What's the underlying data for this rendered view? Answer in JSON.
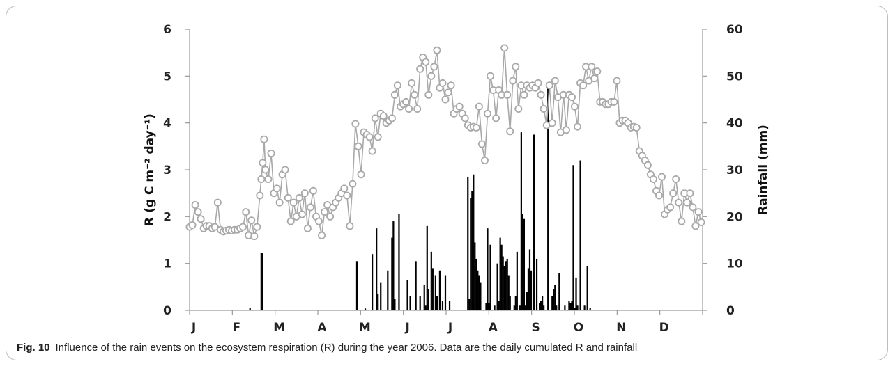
{
  "caption": {
    "label": "Fig. 10",
    "text": "Influence of the rain events on the ecosystem respiration (R) during the year 2006. Data are the daily cumulated R and rainfall"
  },
  "colors": {
    "respiration": "#a8a8a8",
    "rainfall": "#000000",
    "axis": "#9a9a9a"
  },
  "chart_data": {
    "type": "line+bar",
    "year": 2006,
    "title": "",
    "left_axis": {
      "label": "R (g C m⁻² day⁻¹)",
      "range": [
        0,
        6
      ],
      "ticks": [
        "0",
        "1",
        "2",
        "3",
        "4",
        "5",
        "6"
      ]
    },
    "right_axis": {
      "label": "Rainfall (mm)",
      "range": [
        0,
        60
      ],
      "ticks": [
        "0",
        "10",
        "20",
        "30",
        "40",
        "50",
        "60"
      ]
    },
    "x_axis": {
      "month_labels": [
        "J",
        "F",
        "M",
        "A",
        "M",
        "J",
        "J",
        "A",
        "S",
        "O",
        "N",
        "D"
      ],
      "range_days": [
        1,
        365
      ]
    },
    "grid": false,
    "legend": "none",
    "series": [
      {
        "name": "R",
        "kind": "line with circle markers",
        "axis": "left",
        "points": [
          [
            1,
            1.78
          ],
          [
            3,
            1.82
          ],
          [
            5,
            2.25
          ],
          [
            7,
            2.1
          ],
          [
            9,
            1.95
          ],
          [
            11,
            1.75
          ],
          [
            13,
            1.8
          ],
          [
            15,
            1.8
          ],
          [
            17,
            1.75
          ],
          [
            19,
            1.78
          ],
          [
            21,
            2.3
          ],
          [
            23,
            1.72
          ],
          [
            25,
            1.68
          ],
          [
            27,
            1.7
          ],
          [
            29,
            1.72
          ],
          [
            31,
            1.7
          ],
          [
            33,
            1.72
          ],
          [
            35,
            1.72
          ],
          [
            37,
            1.75
          ],
          [
            39,
            1.78
          ],
          [
            41,
            2.1
          ],
          [
            43,
            1.6
          ],
          [
            45,
            1.92
          ],
          [
            47,
            1.58
          ],
          [
            49,
            1.78
          ],
          [
            51,
            2.45
          ],
          [
            52,
            2.8
          ],
          [
            53,
            3.15
          ],
          [
            54,
            3.65
          ],
          [
            55,
            3.0
          ],
          [
            57,
            2.8
          ],
          [
            59,
            3.35
          ],
          [
            61,
            2.5
          ],
          [
            63,
            2.6
          ],
          [
            65,
            2.3
          ],
          [
            67,
            2.9
          ],
          [
            69,
            3.0
          ],
          [
            71,
            2.4
          ],
          [
            73,
            1.9
          ],
          [
            75,
            2.3
          ],
          [
            77,
            2.0
          ],
          [
            79,
            2.4
          ],
          [
            81,
            2.05
          ],
          [
            83,
            2.5
          ],
          [
            85,
            1.75
          ],
          [
            87,
            2.2
          ],
          [
            89,
            2.55
          ],
          [
            91,
            2.0
          ],
          [
            93,
            1.9
          ],
          [
            95,
            1.6
          ],
          [
            97,
            2.1
          ],
          [
            99,
            2.25
          ],
          [
            101,
            2.0
          ],
          [
            103,
            2.2
          ],
          [
            105,
            2.3
          ],
          [
            107,
            2.4
          ],
          [
            109,
            2.5
          ],
          [
            111,
            2.6
          ],
          [
            113,
            2.45
          ],
          [
            115,
            1.8
          ],
          [
            117,
            2.7
          ],
          [
            119,
            3.98
          ],
          [
            121,
            3.5
          ],
          [
            123,
            2.9
          ],
          [
            125,
            3.8
          ],
          [
            127,
            3.75
          ],
          [
            129,
            3.7
          ],
          [
            131,
            3.4
          ],
          [
            133,
            4.1
          ],
          [
            135,
            3.7
          ],
          [
            137,
            4.2
          ],
          [
            139,
            4.15
          ],
          [
            141,
            4.0
          ],
          [
            143,
            4.05
          ],
          [
            145,
            4.1
          ],
          [
            147,
            4.6
          ],
          [
            149,
            4.8
          ],
          [
            151,
            4.35
          ],
          [
            153,
            4.4
          ],
          [
            155,
            4.45
          ],
          [
            157,
            4.3
          ],
          [
            159,
            4.85
          ],
          [
            161,
            4.6
          ],
          [
            163,
            4.3
          ],
          [
            165,
            5.15
          ],
          [
            167,
            5.4
          ],
          [
            169,
            5.3
          ],
          [
            171,
            4.6
          ],
          [
            173,
            5.0
          ],
          [
            175,
            5.2
          ],
          [
            177,
            5.55
          ],
          [
            179,
            4.75
          ],
          [
            181,
            4.85
          ],
          [
            183,
            4.5
          ],
          [
            185,
            4.65
          ],
          [
            187,
            4.8
          ],
          [
            189,
            4.2
          ],
          [
            191,
            4.3
          ],
          [
            193,
            4.35
          ],
          [
            195,
            4.2
          ],
          [
            197,
            4.1
          ],
          [
            199,
            3.95
          ],
          [
            201,
            3.9
          ],
          [
            203,
            3.92
          ],
          [
            205,
            3.9
          ],
          [
            207,
            4.35
          ],
          [
            209,
            3.55
          ],
          [
            211,
            3.2
          ],
          [
            213,
            4.2
          ],
          [
            215,
            5.0
          ],
          [
            217,
            4.7
          ],
          [
            219,
            4.1
          ],
          [
            221,
            4.7
          ],
          [
            223,
            4.6
          ],
          [
            225,
            5.6
          ],
          [
            227,
            4.6
          ],
          [
            229,
            3.82
          ],
          [
            231,
            4.9
          ],
          [
            233,
            5.2
          ],
          [
            235,
            4.3
          ],
          [
            237,
            4.8
          ],
          [
            239,
            4.6
          ],
          [
            241,
            4.8
          ],
          [
            243,
            4.75
          ],
          [
            245,
            4.8
          ],
          [
            247,
            4.75
          ],
          [
            249,
            4.85
          ],
          [
            251,
            4.6
          ],
          [
            253,
            4.3
          ],
          [
            255,
            3.95
          ],
          [
            257,
            4.8
          ],
          [
            259,
            4.0
          ],
          [
            261,
            4.9
          ],
          [
            263,
            4.55
          ],
          [
            265,
            3.8
          ],
          [
            267,
            4.6
          ],
          [
            269,
            3.85
          ],
          [
            271,
            4.6
          ],
          [
            273,
            4.55
          ],
          [
            275,
            4.35
          ],
          [
            277,
            3.92
          ],
          [
            279,
            4.85
          ],
          [
            281,
            4.8
          ],
          [
            283,
            5.2
          ],
          [
            285,
            4.9
          ],
          [
            287,
            5.2
          ],
          [
            289,
            4.95
          ],
          [
            291,
            5.1
          ],
          [
            293,
            4.45
          ],
          [
            295,
            4.45
          ],
          [
            297,
            4.4
          ],
          [
            299,
            4.4
          ],
          [
            301,
            4.45
          ],
          [
            303,
            4.45
          ],
          [
            305,
            4.9
          ],
          [
            307,
            4.0
          ],
          [
            309,
            4.05
          ],
          [
            311,
            4.05
          ],
          [
            313,
            4.0
          ],
          [
            315,
            3.9
          ],
          [
            317,
            3.92
          ],
          [
            319,
            3.9
          ],
          [
            321,
            3.4
          ],
          [
            323,
            3.3
          ],
          [
            325,
            3.2
          ],
          [
            327,
            3.1
          ],
          [
            329,
            2.9
          ],
          [
            331,
            2.8
          ],
          [
            333,
            2.55
          ],
          [
            335,
            2.45
          ],
          [
            337,
            2.85
          ],
          [
            339,
            2.05
          ],
          [
            341,
            2.15
          ],
          [
            343,
            2.2
          ],
          [
            345,
            2.5
          ],
          [
            347,
            2.8
          ],
          [
            349,
            2.3
          ],
          [
            351,
            1.9
          ],
          [
            353,
            2.5
          ],
          [
            355,
            2.3
          ],
          [
            357,
            2.5
          ],
          [
            359,
            2.2
          ],
          [
            361,
            1.8
          ],
          [
            363,
            2.1
          ],
          [
            365,
            1.88
          ]
        ]
      },
      {
        "name": "Rainfall",
        "kind": "bar",
        "axis": "right",
        "points": [
          [
            44,
            0.5
          ],
          [
            52,
            12.3
          ],
          [
            53,
            12.2
          ],
          [
            120,
            10.5
          ],
          [
            126,
            0.4
          ],
          [
            131,
            12
          ],
          [
            134,
            17.5
          ],
          [
            135,
            3.5
          ],
          [
            137,
            6
          ],
          [
            142,
            8.5
          ],
          [
            145,
            15.5
          ],
          [
            146,
            19
          ],
          [
            147,
            2.5
          ],
          [
            150,
            20.5
          ],
          [
            156,
            6.5
          ],
          [
            158,
            3
          ],
          [
            162,
            10.5
          ],
          [
            165,
            3
          ],
          [
            168,
            5.5
          ],
          [
            169,
            1
          ],
          [
            170,
            18
          ],
          [
            171,
            4.5
          ],
          [
            173,
            12.5
          ],
          [
            174,
            9
          ],
          [
            176,
            7.5
          ],
          [
            177,
            3
          ],
          [
            179,
            8.5
          ],
          [
            181,
            2
          ],
          [
            183,
            7.5
          ],
          [
            186,
            2
          ],
          [
            199,
            28.5
          ],
          [
            200,
            2.5
          ],
          [
            201,
            24
          ],
          [
            202,
            25.5
          ],
          [
            203,
            29
          ],
          [
            204,
            14.5
          ],
          [
            205,
            11
          ],
          [
            206,
            8.5
          ],
          [
            207,
            7.5
          ],
          [
            208,
            6
          ],
          [
            212,
            1.5
          ],
          [
            213,
            17.5
          ],
          [
            214,
            1.5
          ],
          [
            215,
            14
          ],
          [
            218,
            1
          ],
          [
            220,
            10
          ],
          [
            221,
            2
          ],
          [
            222,
            15.5
          ],
          [
            223,
            14
          ],
          [
            224,
            11.5
          ],
          [
            225,
            9.5
          ],
          [
            226,
            10.5
          ],
          [
            227,
            11
          ],
          [
            228,
            7.5
          ],
          [
            229,
            3
          ],
          [
            232,
            1
          ],
          [
            233,
            3
          ],
          [
            234,
            12.5
          ],
          [
            236,
            1
          ],
          [
            237,
            38
          ],
          [
            238,
            20.5
          ],
          [
            239,
            19.5
          ],
          [
            240,
            1
          ],
          [
            241,
            4
          ],
          [
            242,
            9
          ],
          [
            243,
            13
          ],
          [
            244,
            8.5
          ],
          [
            246,
            37.5
          ],
          [
            248,
            11
          ],
          [
            250,
            1.5
          ],
          [
            251,
            2
          ],
          [
            252,
            3
          ],
          [
            253,
            1
          ],
          [
            256,
            48
          ],
          [
            259,
            3
          ],
          [
            260,
            4.5
          ],
          [
            261,
            5.5
          ],
          [
            262,
            1
          ],
          [
            264,
            8
          ],
          [
            268,
            1
          ],
          [
            271,
            2
          ],
          [
            272,
            1.5
          ],
          [
            273,
            2
          ],
          [
            274,
            31
          ],
          [
            275,
            0.5
          ],
          [
            276,
            7
          ],
          [
            277,
            1
          ],
          [
            279,
            32
          ],
          [
            282,
            1
          ],
          [
            284,
            9.5
          ],
          [
            286,
            0.5
          ]
        ]
      }
    ]
  }
}
